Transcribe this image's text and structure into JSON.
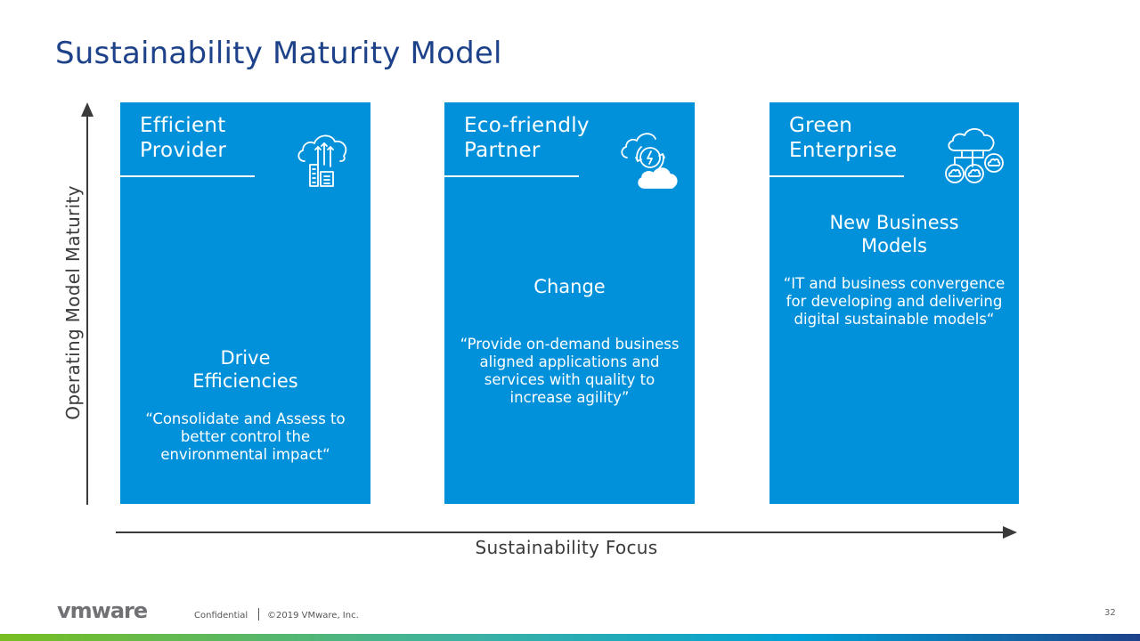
{
  "slide": {
    "title": "Sustainability Maturity Model",
    "y_axis_label": "Operating Model Maturity",
    "x_axis_label": "Sustainability Focus",
    "stages": [
      {
        "name": "Efficient Provider",
        "subtitle_line1": "Drive",
        "subtitle_line2": "Efficiencies",
        "quote": "“Consolidate and Assess to better control the environmental impact“",
        "icon": "cloud-upload-buildings-icon"
      },
      {
        "name": "Eco-friendly Partner",
        "subtitle_line1": "Change",
        "quote": "“Provide on-demand business aligned applications and services with quality to increase agility”",
        "icon": "cloud-energy-cycle-icon"
      },
      {
        "name": "Green Enterprise",
        "subtitle_line1": "New Business",
        "subtitle_line2": "Models",
        "quote": "“IT and business convergence for developing and delivering digital sustainable models“",
        "icon": "cloud-network-icon"
      }
    ]
  },
  "footer": {
    "logo_text": "vmware",
    "confidential": "Confidential",
    "copyright": "©2019 VMware, Inc.",
    "page_number": "32"
  },
  "colors": {
    "title": "#1d428a",
    "card": "#0091da",
    "axis": "#3a3a3a"
  }
}
